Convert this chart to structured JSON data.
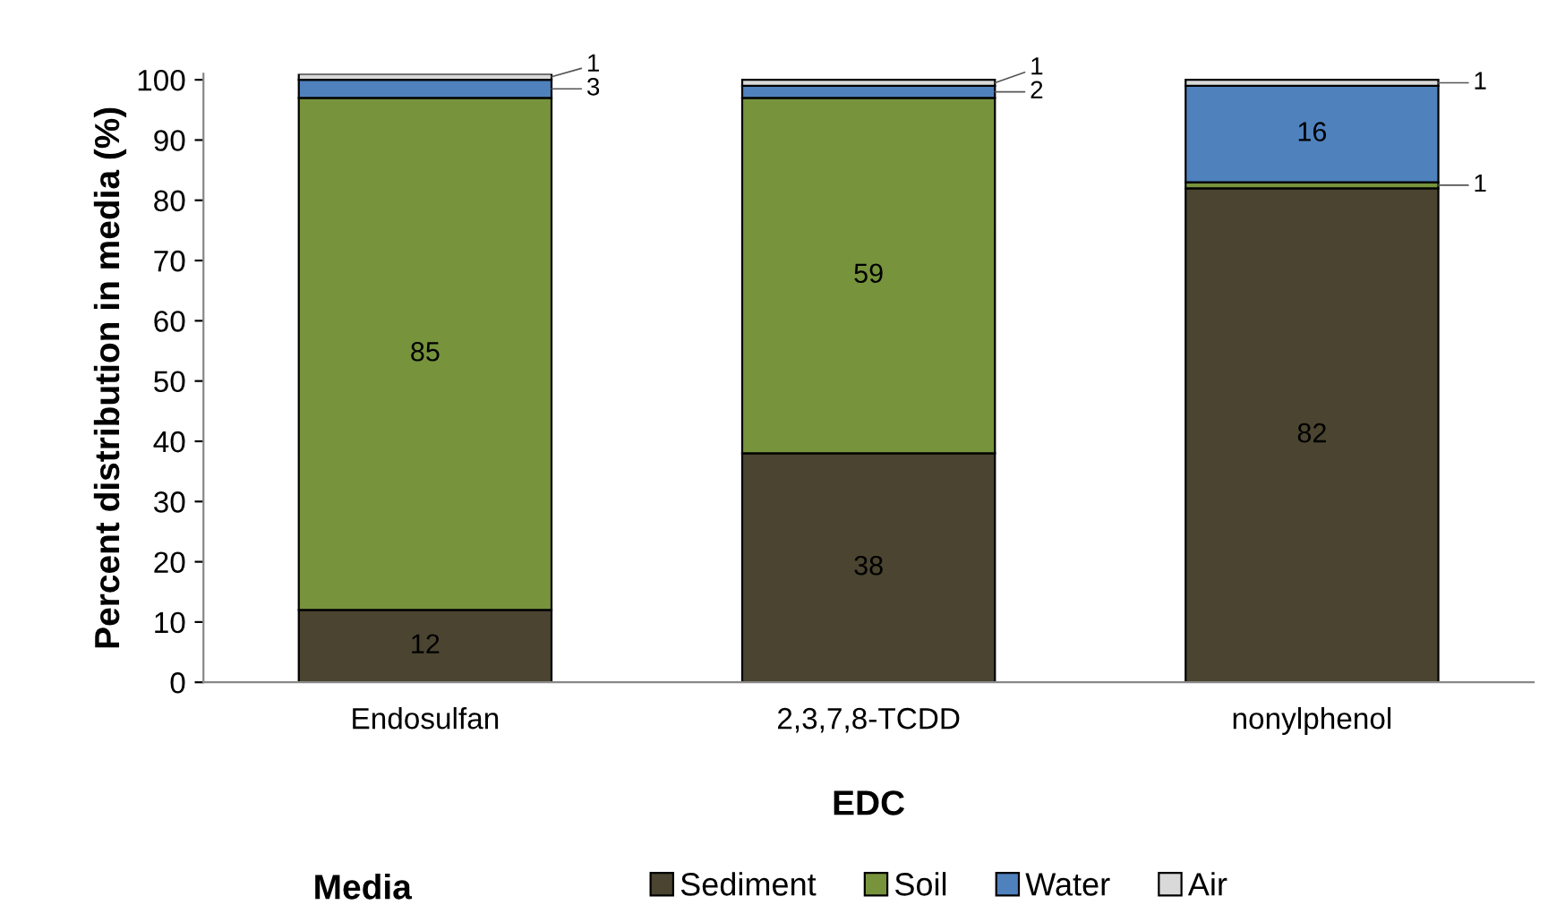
{
  "chart_data": {
    "type": "bar",
    "stacked": true,
    "xlabel": "EDC",
    "ylabel": "Percent distribution in media (%)",
    "legend_title": "Media",
    "categories": [
      "Endosulfan",
      "2,3,7,8-TCDD",
      "nonylphenol"
    ],
    "series": [
      {
        "name": "Sediment",
        "color": "#4a4430",
        "values": [
          12,
          38,
          82
        ]
      },
      {
        "name": "Soil",
        "color": "#77933c",
        "values": [
          85,
          59,
          1
        ]
      },
      {
        "name": "Water",
        "color": "#4f81bd",
        "values": [
          3,
          2,
          16
        ]
      },
      {
        "name": "Air",
        "color": "#d9d9d9",
        "values": [
          1,
          1,
          1
        ]
      }
    ],
    "ylim": [
      0,
      101
    ],
    "yticks": [
      0,
      10,
      20,
      30,
      40,
      50,
      60,
      70,
      80,
      90,
      100
    ],
    "data_labels": true,
    "legend": "bottom",
    "grid": false
  }
}
